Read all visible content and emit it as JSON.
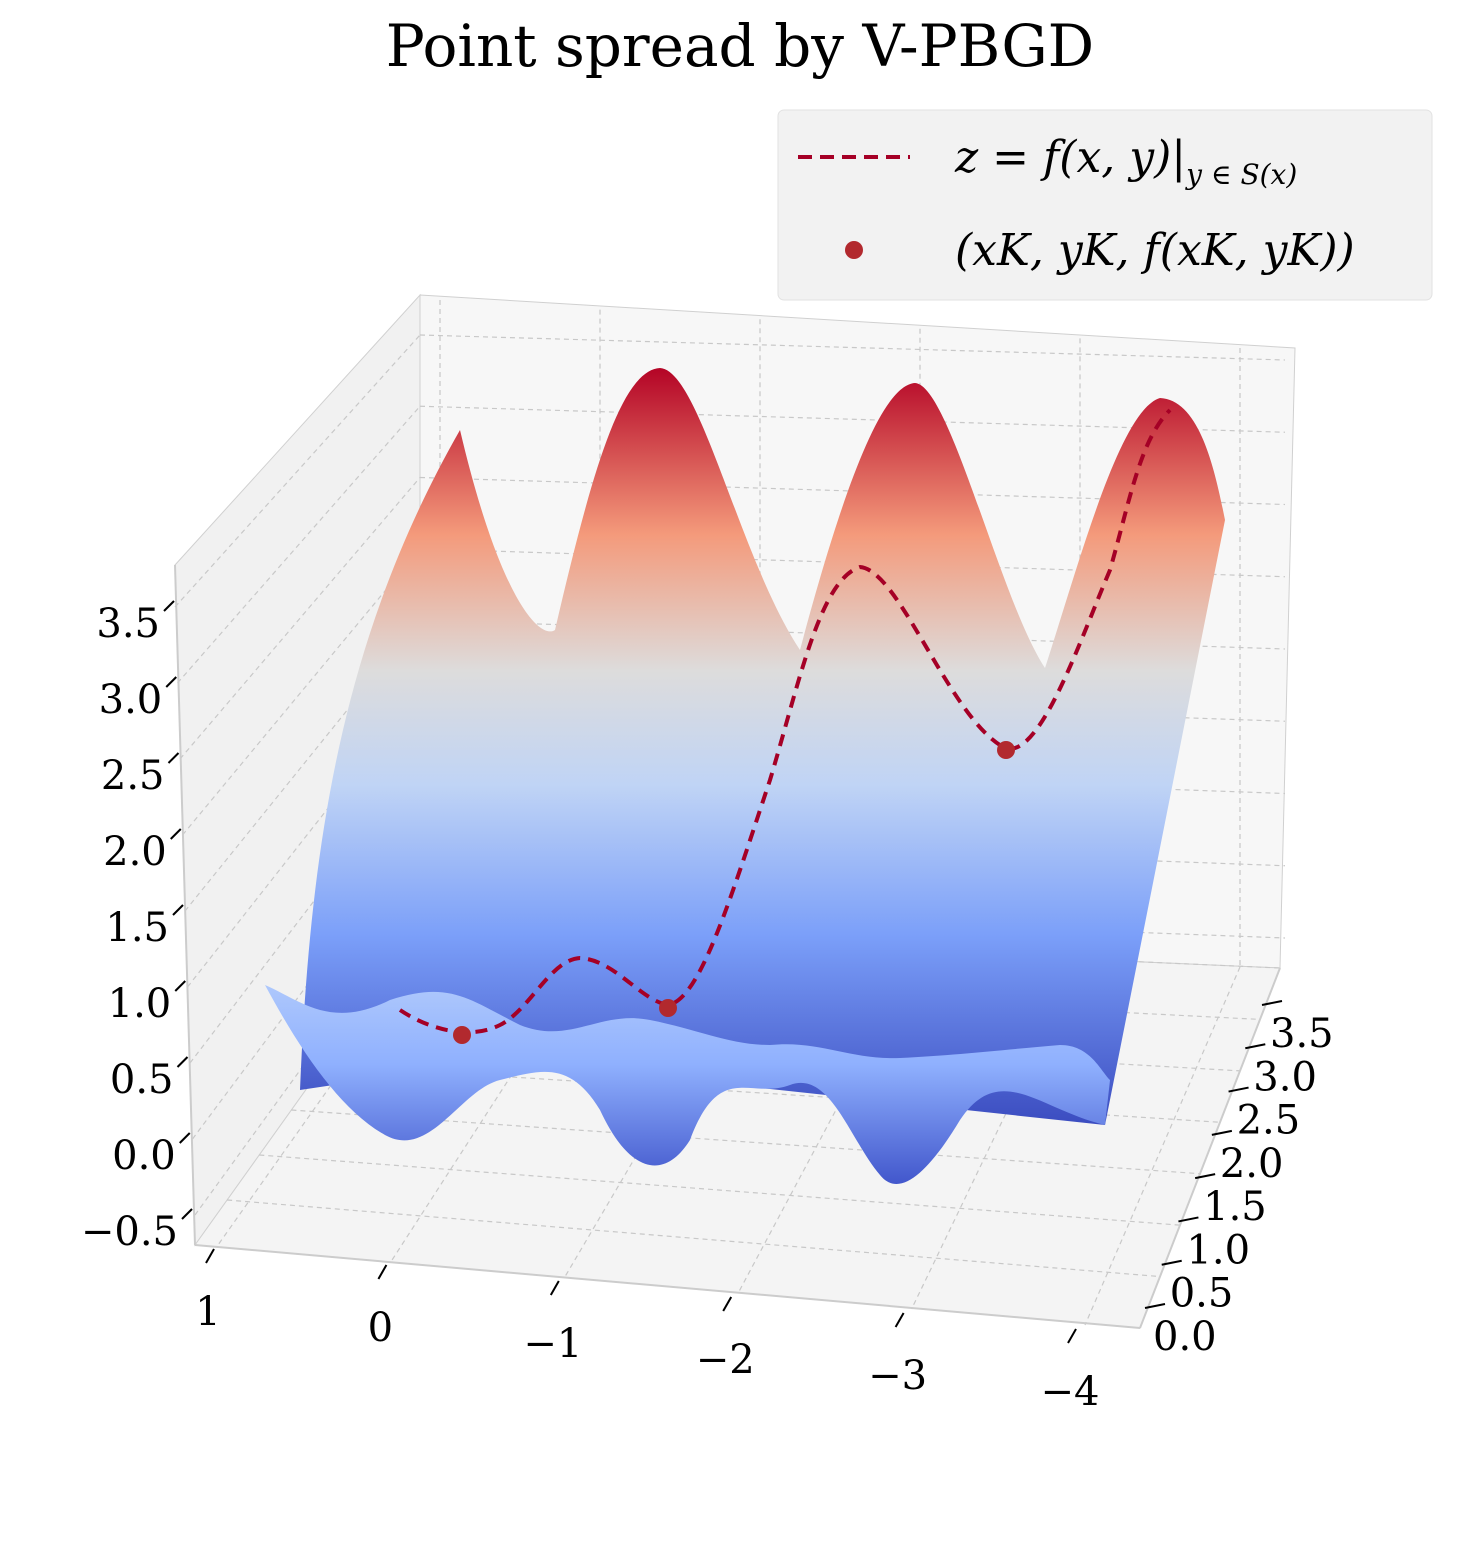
{
  "chart_data": {
    "type": "surface3d",
    "title": "Point spread by V-PBGD",
    "colormap": "coolwarm",
    "x_ticks": [
      "1",
      "0",
      "−1",
      "−2",
      "−3",
      "−4"
    ],
    "y_ticks": [
      "0.0",
      "0.5",
      "1.0",
      "1.5",
      "2.0",
      "2.5",
      "3.0",
      "3.5"
    ],
    "z_ticks": [
      "−0.5",
      "0.0",
      "0.5",
      "1.0",
      "1.5",
      "2.0",
      "2.5",
      "3.0",
      "3.5"
    ],
    "xlim": [
      1,
      -4.2
    ],
    "ylim": [
      0,
      3.8
    ],
    "zlim": [
      -0.6,
      3.8
    ],
    "grid": true,
    "legend_position": "top-right",
    "series": [
      {
        "name": "z = f(x, y)|y∈S(x)",
        "style": "dashed",
        "color": "#a50026",
        "x": [
          -0.1,
          -0.3,
          -0.5,
          -0.75,
          -1.0,
          -1.25,
          -1.55,
          -1.85,
          -2.1,
          -2.4,
          -2.7,
          -3.0,
          -3.3,
          -3.5,
          -3.8
        ],
        "z": [
          0.95,
          0.75,
          0.72,
          0.9,
          1.25,
          1.15,
          0.85,
          1.8,
          3.15,
          3.8,
          3.1,
          2.45,
          3.0,
          3.9,
          4.6
        ]
      },
      {
        "name": "(xK, yK, f(xK, yK))",
        "style": "scatter",
        "color": "#b2292e",
        "x": [
          -0.5,
          -1.7,
          -3.2
        ],
        "z": [
          0.72,
          0.9,
          2.45
        ]
      }
    ]
  },
  "legend": {
    "line_label_main": "z = f(x, y)|",
    "line_label_sub": "y ∈ S(x)",
    "point_label": "(xK, yK, f(xK, yK))"
  },
  "colors": {
    "peak_red": "#b40426",
    "mid_neutral": "#dddcdc",
    "trough_blue": "#3b4cc0",
    "curve": "#a50026",
    "marker": "#b2292e",
    "pane": "#f2f2f2"
  }
}
